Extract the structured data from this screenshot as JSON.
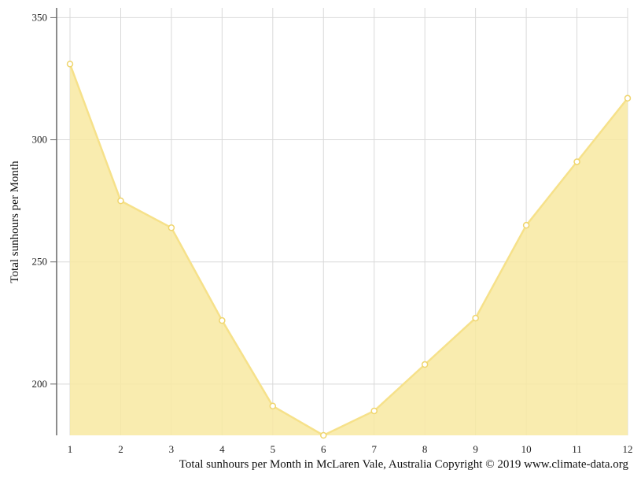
{
  "chart_data": {
    "type": "area",
    "title": "",
    "xlabel": "",
    "ylabel": "Total sunhours per Month",
    "caption": "Total sunhours per Month in McLaren Vale, Australia Copyright © 2019 www.climate-data.org",
    "x": [
      "1",
      "2",
      "3",
      "4",
      "5",
      "6",
      "7",
      "8",
      "9",
      "10",
      "11",
      "12"
    ],
    "values": [
      331,
      275,
      264,
      226,
      191,
      179,
      189,
      208,
      227,
      265,
      291,
      317
    ],
    "yticks": [
      200,
      250,
      300,
      350
    ],
    "ylim": [
      179,
      354
    ],
    "grid": true,
    "colors": {
      "fill": "#f8e9a1",
      "line": "#f6e18a",
      "point_stroke": "#efd56e",
      "grid": "#d9d9d9",
      "axis": "#666666"
    }
  }
}
